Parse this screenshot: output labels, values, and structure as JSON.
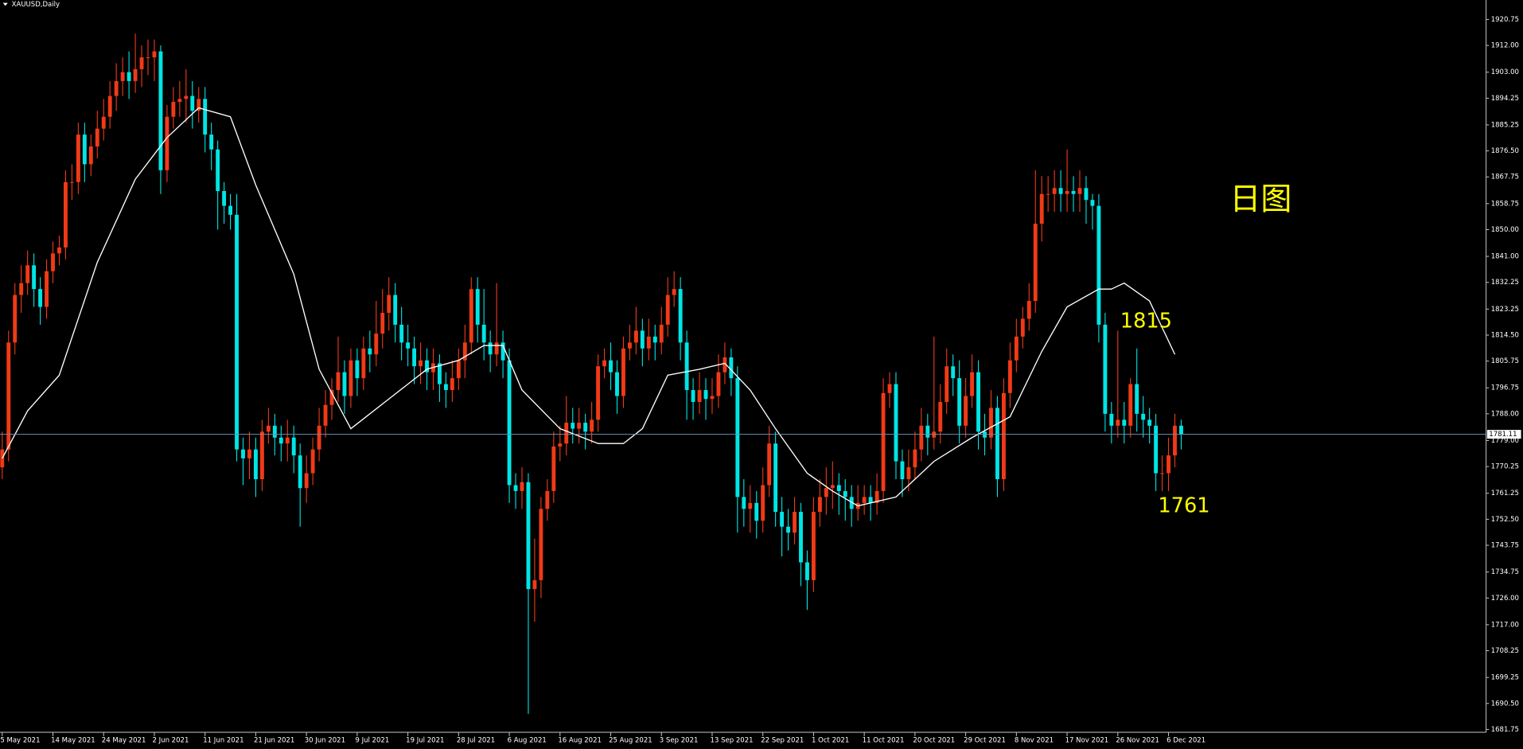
{
  "chart_data": {
    "type": "candlestick",
    "title": "XAUUSD,Daily",
    "background": "#000000",
    "grid": false,
    "up_color": "#f03a17",
    "down_color": "#00e5e5",
    "axis_color": "#c8c8c8",
    "open": [
      1770,
      1776,
      1812,
      1828,
      1832,
      1838,
      1830,
      1824,
      1836,
      1842,
      1844,
      1866,
      1866,
      1882,
      1872,
      1878,
      1884,
      1888,
      1895,
      1900,
      1903,
      1900,
      1904,
      1908,
      1908,
      1910,
      1870,
      1888,
      1893,
      1894,
      1895,
      1890,
      1894,
      1882,
      1877,
      1863,
      1858,
      1855,
      1776,
      1773,
      1776,
      1766,
      1782,
      1784,
      1780,
      1778,
      1780,
      1774,
      1763,
      1768,
      1776,
      1784,
      1791,
      1796,
      1802,
      1794,
      1806,
      1800,
      1810,
      1808,
      1815,
      1822,
      1828,
      1818,
      1812,
      1810,
      1804,
      1806,
      1802,
      1805,
      1798,
      1796,
      1800,
      1806,
      1812,
      1830,
      1818,
      1812,
      1808,
      1812,
      1806,
      1764,
      1762,
      1765,
      1729,
      1732,
      1756,
      1762,
      1777,
      1778,
      1785,
      1783,
      1785,
      1782,
      1786,
      1804,
      1806,
      1802,
      1794,
      1810,
      1812,
      1816,
      1810,
      1814,
      1812,
      1818,
      1828,
      1830,
      1812,
      1796,
      1792,
      1796,
      1793,
      1794,
      1802,
      1807,
      1800,
      1760,
      1756,
      1758,
      1752,
      1764,
      1778,
      1755,
      1750,
      1748,
      1755,
      1738,
      1732,
      1755,
      1760,
      1763,
      1764,
      1762,
      1760,
      1756,
      1758,
      1760,
      1758,
      1762,
      1795,
      1798,
      1772,
      1766,
      1770,
      1776,
      1784,
      1780,
      1782,
      1792,
      1804,
      1800,
      1784,
      1794,
      1802,
      1782,
      1780,
      1790,
      1766,
      1795,
      1806,
      1814,
      1820,
      1826,
      1852,
      1862,
      1862,
      1864,
      1862,
      1863,
      1862,
      1864,
      1860,
      1858,
      1818,
      1788,
      1784,
      1786,
      1784,
      1798,
      1788,
      1786,
      1784,
      1768,
      1768,
      1774,
      1784
    ],
    "high": [
      1782,
      1816,
      1832,
      1838,
      1843,
      1842,
      1834,
      1840,
      1846,
      1848,
      1870,
      1872,
      1886,
      1886,
      1882,
      1890,
      1894,
      1900,
      1906,
      1908,
      1910,
      1916,
      1912,
      1914,
      1914,
      1912,
      1892,
      1898,
      1900,
      1904,
      1900,
      1898,
      1898,
      1886,
      1880,
      1866,
      1862,
      1862,
      1780,
      1782,
      1780,
      1786,
      1790,
      1788,
      1784,
      1786,
      1784,
      1778,
      1774,
      1780,
      1790,
      1796,
      1800,
      1814,
      1806,
      1810,
      1810,
      1814,
      1816,
      1826,
      1830,
      1834,
      1832,
      1824,
      1818,
      1814,
      1812,
      1810,
      1810,
      1808,
      1802,
      1806,
      1810,
      1818,
      1834,
      1834,
      1830,
      1816,
      1832,
      1816,
      1810,
      1768,
      1770,
      1768,
      1746,
      1760,
      1766,
      1782,
      1784,
      1794,
      1790,
      1790,
      1788,
      1792,
      1808,
      1810,
      1812,
      1806,
      1814,
      1818,
      1824,
      1820,
      1820,
      1818,
      1824,
      1834,
      1836,
      1834,
      1816,
      1800,
      1802,
      1800,
      1800,
      1808,
      1812,
      1810,
      1804,
      1766,
      1764,
      1762,
      1770,
      1784,
      1782,
      1760,
      1756,
      1760,
      1758,
      1742,
      1760,
      1766,
      1770,
      1772,
      1768,
      1766,
      1764,
      1764,
      1764,
      1764,
      1768,
      1800,
      1802,
      1802,
      1776,
      1776,
      1782,
      1790,
      1788,
      1814,
      1798,
      1810,
      1808,
      1806,
      1800,
      1808,
      1806,
      1788,
      1796,
      1794,
      1800,
      1812,
      1820,
      1824,
      1832,
      1870,
      1868,
      1868,
      1870,
      1870,
      1877,
      1868,
      1870,
      1868,
      1862,
      1862,
      1822,
      1792,
      1816,
      1792,
      1800,
      1810,
      1794,
      1790,
      1788,
      1774,
      1780,
      1788,
      1786
    ],
    "low": [
      1766,
      1772,
      1808,
      1822,
      1828,
      1824,
      1818,
      1820,
      1832,
      1838,
      1840,
      1860,
      1862,
      1866,
      1868,
      1874,
      1880,
      1884,
      1890,
      1895,
      1894,
      1896,
      1898,
      1902,
      1900,
      1862,
      1866,
      1884,
      1888,
      1886,
      1884,
      1886,
      1876,
      1870,
      1850,
      1852,
      1850,
      1772,
      1764,
      1766,
      1760,
      1762,
      1778,
      1774,
      1772,
      1772,
      1768,
      1750,
      1758,
      1764,
      1772,
      1780,
      1786,
      1792,
      1788,
      1790,
      1794,
      1796,
      1802,
      1804,
      1810,
      1816,
      1812,
      1806,
      1804,
      1798,
      1798,
      1796,
      1796,
      1792,
      1790,
      1792,
      1796,
      1800,
      1808,
      1812,
      1806,
      1802,
      1804,
      1800,
      1758,
      1756,
      1756,
      1687,
      1718,
      1726,
      1752,
      1758,
      1772,
      1774,
      1778,
      1778,
      1776,
      1778,
      1782,
      1800,
      1796,
      1788,
      1790,
      1806,
      1808,
      1804,
      1806,
      1806,
      1808,
      1814,
      1824,
      1806,
      1786,
      1786,
      1788,
      1786,
      1788,
      1790,
      1798,
      1794,
      1748,
      1750,
      1748,
      1746,
      1748,
      1760,
      1750,
      1740,
      1742,
      1744,
      1730,
      1722,
      1728,
      1750,
      1754,
      1756,
      1754,
      1752,
      1750,
      1752,
      1754,
      1752,
      1754,
      1758,
      1790,
      1766,
      1760,
      1762,
      1766,
      1772,
      1774,
      1776,
      1778,
      1788,
      1794,
      1778,
      1780,
      1790,
      1776,
      1774,
      1776,
      1760,
      1762,
      1790,
      1802,
      1810,
      1816,
      1822,
      1846,
      1856,
      1856,
      1856,
      1856,
      1856,
      1856,
      1852,
      1850,
      1812,
      1782,
      1778,
      1780,
      1778,
      1780,
      1782,
      1780,
      1778,
      1762,
      1762,
      1762,
      1770,
      1776
    ],
    "close": [
      1776,
      1812,
      1828,
      1832,
      1838,
      1830,
      1824,
      1836,
      1842,
      1844,
      1866,
      1866,
      1882,
      1872,
      1878,
      1884,
      1888,
      1895,
      1900,
      1903,
      1900,
      1904,
      1908,
      1908,
      1910,
      1870,
      1888,
      1893,
      1894,
      1895,
      1890,
      1894,
      1882,
      1877,
      1863,
      1858,
      1855,
      1776,
      1773,
      1776,
      1766,
      1782,
      1784,
      1780,
      1778,
      1780,
      1774,
      1763,
      1768,
      1776,
      1784,
      1791,
      1796,
      1802,
      1794,
      1806,
      1800,
      1810,
      1808,
      1815,
      1822,
      1828,
      1818,
      1812,
      1810,
      1804,
      1806,
      1802,
      1805,
      1798,
      1796,
      1800,
      1806,
      1812,
      1830,
      1818,
      1812,
      1808,
      1812,
      1806,
      1764,
      1762,
      1765,
      1729,
      1732,
      1756,
      1762,
      1777,
      1778,
      1785,
      1783,
      1785,
      1782,
      1786,
      1804,
      1806,
      1802,
      1794,
      1810,
      1812,
      1816,
      1810,
      1814,
      1812,
      1818,
      1828,
      1830,
      1812,
      1796,
      1792,
      1796,
      1793,
      1794,
      1802,
      1807,
      1800,
      1760,
      1756,
      1758,
      1752,
      1764,
      1778,
      1755,
      1750,
      1748,
      1755,
      1738,
      1732,
      1755,
      1760,
      1763,
      1764,
      1762,
      1760,
      1756,
      1758,
      1760,
      1758,
      1762,
      1795,
      1798,
      1772,
      1766,
      1770,
      1776,
      1784,
      1780,
      1782,
      1792,
      1804,
      1800,
      1784,
      1794,
      1802,
      1782,
      1780,
      1790,
      1766,
      1795,
      1806,
      1814,
      1820,
      1826,
      1852,
      1862,
      1862,
      1864,
      1862,
      1863,
      1862,
      1864,
      1860,
      1858,
      1818,
      1788,
      1784,
      1786,
      1784,
      1798,
      1788,
      1786,
      1784,
      1768,
      1768,
      1774,
      1784,
      1781
    ],
    "ma": {
      "color": "#ffffff",
      "x": [
        0,
        4,
        9,
        15,
        21,
        26,
        31,
        36,
        40,
        46,
        50,
        55,
        61,
        67,
        72,
        76,
        79,
        82,
        88,
        94,
        98,
        101,
        105,
        110,
        114,
        118,
        122,
        127,
        131,
        135,
        141,
        147,
        153,
        159,
        164,
        168,
        173,
        175,
        177,
        181,
        185
      ],
      "values": [
        1773,
        1789,
        1801,
        1839,
        1867,
        1881,
        1891,
        1888,
        1865,
        1835,
        1803,
        1783,
        1793,
        1803,
        1806,
        1811,
        1811,
        1796,
        1783,
        1778,
        1778,
        1783,
        1801,
        1803,
        1805,
        1796,
        1783,
        1768,
        1762,
        1757,
        1760,
        1772,
        1780,
        1787,
        1809,
        1824,
        1830,
        1830,
        1832,
        1826,
        1808
      ]
    },
    "xlim": [
      -0.35,
      234.1
    ],
    "xticks": [
      {
        "value": 0,
        "label": "5 May 2021"
      },
      {
        "value": 8,
        "label": "14 May 2021"
      },
      {
        "value": 16,
        "label": "24 May 2021"
      },
      {
        "value": 24,
        "label": "2 Jun 2021"
      },
      {
        "value": 32,
        "label": "11 Jun 2021"
      },
      {
        "value": 40,
        "label": "21 Jun 2021"
      },
      {
        "value": 48,
        "label": "30 Jun 2021"
      },
      {
        "value": 56,
        "label": "9 Jul 2021"
      },
      {
        "value": 64,
        "label": "19 Jul 2021"
      },
      {
        "value": 72,
        "label": "28 Jul 2021"
      },
      {
        "value": 80,
        "label": "6 Aug 2021"
      },
      {
        "value": 88,
        "label": "16 Aug 2021"
      },
      {
        "value": 96,
        "label": "25 Aug 2021"
      },
      {
        "value": 104,
        "label": "3 Sep 2021"
      },
      {
        "value": 112,
        "label": "13 Sep 2021"
      },
      {
        "value": 120,
        "label": "22 Sep 2021"
      },
      {
        "value": 128,
        "label": "1 Oct 2021"
      },
      {
        "value": 136,
        "label": "11 Oct 2021"
      },
      {
        "value": 144,
        "label": "20 Oct 2021"
      },
      {
        "value": 152,
        "label": "29 Oct 2021"
      },
      {
        "value": 160,
        "label": "8 Nov 2021"
      },
      {
        "value": 168,
        "label": "17 Nov 2021"
      },
      {
        "value": 176,
        "label": "26 Nov 2021"
      },
      {
        "value": 184,
        "label": "6 Dec 2021"
      }
    ],
    "ylim": [
      1680.8,
      1927.3
    ],
    "yticks": [
      1920.75,
      {
        "value": 1912,
        "label": "1912.00"
      },
      {
        "value": 1903,
        "label": "1903.00"
      },
      1894.25,
      1885.25,
      {
        "value": 1876.5,
        "label": "1876.50"
      },
      1867.75,
      1858.75,
      {
        "value": 1850,
        "label": "1850.00"
      },
      {
        "value": 1841,
        "label": "1841.00"
      },
      1832.25,
      1823.25,
      {
        "value": 1814.5,
        "label": "1814.50"
      },
      1805.75,
      1796.75,
      {
        "value": 1788,
        "label": "1788.00"
      },
      {
        "value": 1779,
        "label": "1779.00"
      },
      1770.25,
      1761.25,
      {
        "value": 1752.5,
        "label": "1752.50"
      },
      1743.75,
      1734.75,
      {
        "value": 1726,
        "label": "1726.00"
      },
      {
        "value": 1717,
        "label": "1717.00"
      },
      1708.25,
      1699.25,
      {
        "value": 1690.5,
        "label": "1690.50"
      },
      1681.75
    ],
    "price_line": {
      "value": 1781.11,
      "color": "#6b8eb0"
    },
    "annotation_color": "#ffff00",
    "annotations": [
      {
        "text": "日图"
      },
      {
        "text": "1815"
      },
      {
        "text": "1761"
      }
    ]
  }
}
